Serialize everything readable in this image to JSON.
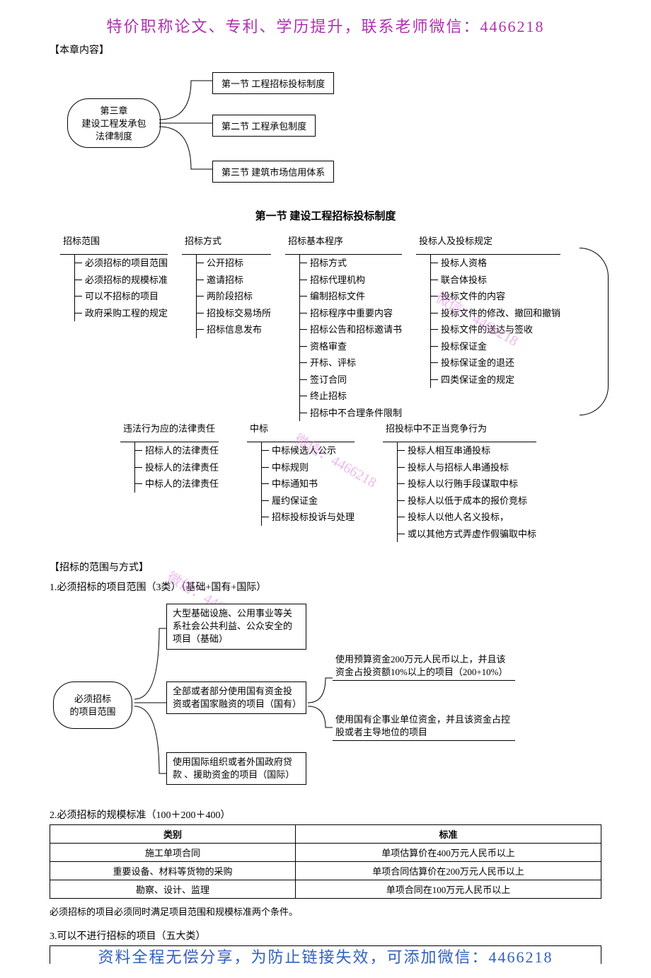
{
  "banner_top": "特价职称论文、专利、学历提升，联系老师微信：4466218",
  "banner_bottom": "资料全程无偿分享，为防止链接失效，可添加微信：4466218",
  "chapter_label": "【本章内容】",
  "diag1": {
    "root_line1": "第三章",
    "root_line2": "建设工程发承包",
    "root_line3": "法律制度",
    "children": [
      "第一节 工程招标投标制度",
      "第二节 工程承包制度",
      "第三节 建筑市场信用体系"
    ]
  },
  "section1_title": "第一节   建设工程招标投标制度",
  "tree_row1": [
    {
      "head": "招标范围",
      "items": [
        "必须招标的项目范围",
        "必须招标的规模标准",
        "可以不招标的项目",
        "政府采购工程的规定"
      ]
    },
    {
      "head": "招标方式",
      "items": [
        "公开招标",
        "邀请招标",
        "两阶段招标",
        "招投标交易场所",
        "招标信息发布"
      ]
    },
    {
      "head": "招标基本程序",
      "items": [
        "招标方式",
        "招标代理机构",
        "编制招标文件",
        "招标程序中重要内容",
        "招标公告和招标邀请书",
        "资格审查",
        "开标、评标",
        "签订合同",
        "终止招标",
        "招标中不合理条件限制"
      ]
    },
    {
      "head": "投标人及投标规定",
      "items": [
        "投标人资格",
        "联合体投标",
        "投标文件的内容",
        "投标文件的修改、撤回和撤销",
        "投标文件的送达与签收",
        "投标保证金",
        "投标保证金的退还",
        "四类保证金的规定"
      ]
    }
  ],
  "tree_row2": [
    {
      "head": "违法行为应的法律责任",
      "items": [
        "招标人的法律责任",
        "投标人的法律责任",
        "中标人的法律责任"
      ]
    },
    {
      "head": "中标",
      "items": [
        "中标候选人公示",
        "中标规则",
        "中标通知书",
        "履约保证金",
        "招标投标投诉与处理"
      ]
    },
    {
      "head": "招投标中不正当竞争行为",
      "items": [
        "投标人相互串通投标",
        "投标人与招标人串通投标",
        "投标人以行贿手段谋取中标",
        "投标人以低于成本的报价竞标",
        "投标人以他人名义投标，",
        "或以其他方式弄虚作假骗取中标"
      ]
    }
  ],
  "scope_head": "【招标的范围与方式】",
  "scope_item1": "1.必须招标的项目范围（3类）（基础+国有+国际）",
  "diag3": {
    "root_line1": "必须招标",
    "root_line2": "的项目范围",
    "box1": "大型基础设施、公用事业等关系社会公共利益、公众安全的项目（基础）",
    "box2": "全部或者部分使用国有资金投资或者国家融资的项目（国有）",
    "box3": "使用国际组织或者外国政府贷款 、援助资金的项目（国际）",
    "line1": "使用预算资金200万元人民币以上，并且该资金占投资额10%以上的项目（200+10%）",
    "line2": "使用国有企事业单位资金，并且该资金占控股或者主导地位的项目"
  },
  "scope_item2": "2.必须招标的规模标准（100＋200＋400）",
  "table": {
    "headers": [
      "类别",
      "标准"
    ],
    "rows": [
      [
        "施工单项合同",
        "单项估算价在400万元人民币以上"
      ],
      [
        "重要设备、材料等货物的采购",
        "单项合同估算价在200万元人民币以上"
      ],
      [
        "勘察、设计、监理",
        "单项合同在100万元人民币以上"
      ]
    ]
  },
  "table_note": "必须招标的项目必须同时满足项目范围和规模标准两个条件。",
  "scope_item3": "3.可以不进行招标的项目（五大类）",
  "watermark": "微信：4466218",
  "colors": {
    "banner_top": "#b030b0",
    "banner_bottom": "#3060c0",
    "watermark": "#e080e0"
  }
}
